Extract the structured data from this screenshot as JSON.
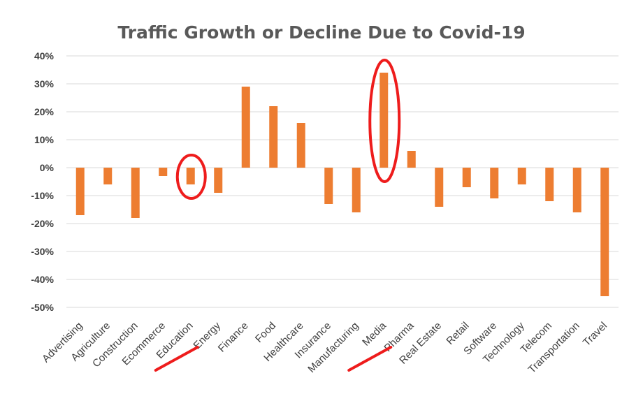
{
  "chart_data": {
    "type": "bar",
    "title": "Traffic Growth or Decline Due to Covid-19",
    "xlabel": "",
    "ylabel": "",
    "ylim": [
      -0.5,
      0.4
    ],
    "y_format": "percent",
    "yticks": [
      "40%",
      "30%",
      "20%",
      "10%",
      "0%",
      "-10%",
      "-20%",
      "-30%",
      "-40%",
      "-50%"
    ],
    "grid": true,
    "legend": "none",
    "bar_color": "#ED7D31",
    "annotation_color": "#EE1C1C",
    "categories": [
      "Advertising",
      "Agriculture",
      "Construction",
      "Ecommerce",
      "Education",
      "Energy",
      "Finance",
      "Food",
      "Healthcare",
      "Insurance",
      "Manufacturing",
      "Media",
      "Pharma",
      "Real Estate",
      "Retail",
      "Software",
      "Technology",
      "Telecom",
      "Transportation",
      "Travel"
    ],
    "values": [
      -0.17,
      -0.06,
      -0.18,
      -0.03,
      -0.06,
      -0.09,
      0.29,
      0.22,
      0.16,
      -0.13,
      -0.16,
      0.34,
      0.06,
      -0.14,
      -0.07,
      -0.11,
      -0.06,
      -0.12,
      -0.16,
      -0.46
    ],
    "highlighted_categories": [
      "Education",
      "Media"
    ]
  }
}
